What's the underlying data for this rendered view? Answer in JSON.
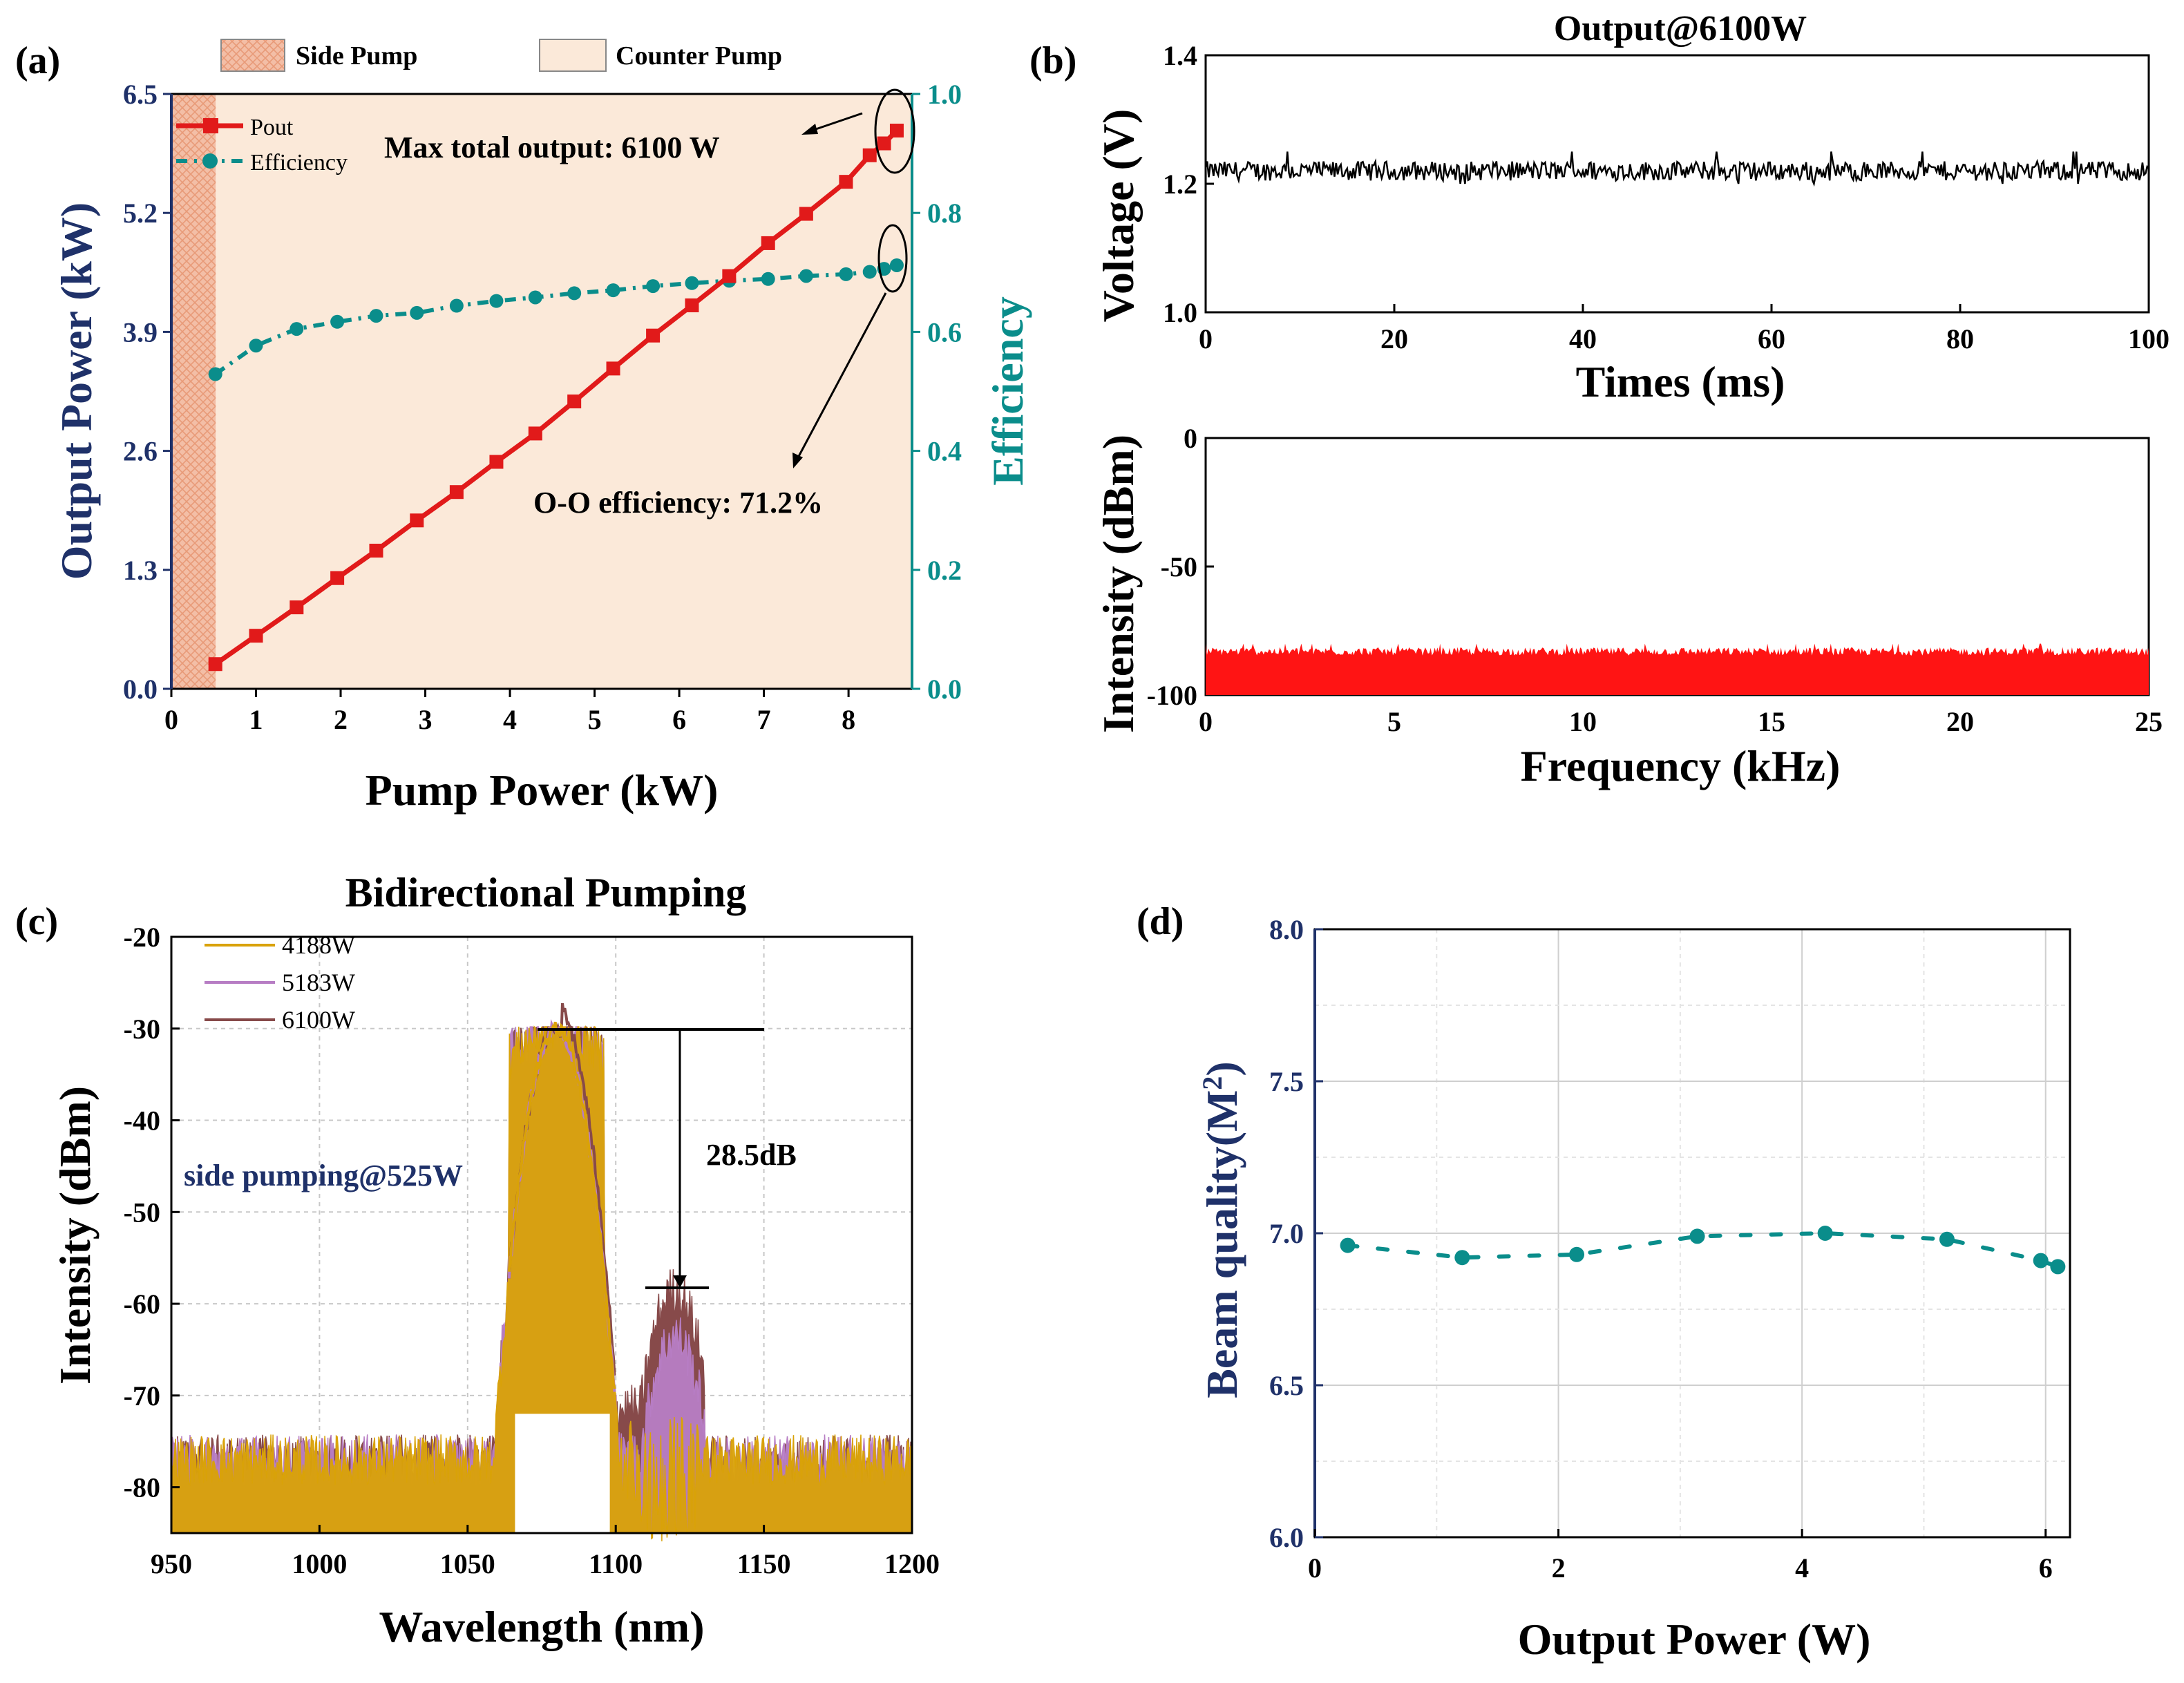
{
  "colors": {
    "navy": "#1f3169",
    "teal": "#0a8d8b",
    "red": "#e11a1a",
    "black": "#000000",
    "side_pump_fill": "#f0b9a0",
    "counter_pump_fill": "#fbe9d9",
    "yellow": "#d9a208",
    "purple": "#b77dc4",
    "brown": "#874a4a",
    "spectrum_red": "#ff1414"
  },
  "chart_data": [
    {
      "id": "a",
      "panel_label": "(a)",
      "type": "line",
      "legend_regions": [
        "Side Pump",
        "Counter Pump"
      ],
      "side_pump_range": [
        0,
        0.525
      ],
      "counter_pump_range": [
        0.525,
        8.75
      ],
      "xlabel": "Pump Power (kW)",
      "ylabel_left": "Output Power (kW)",
      "ylabel_right": "Efficiency",
      "xlim": [
        0,
        8.75
      ],
      "xticks": [
        "0",
        "1",
        "2",
        "3",
        "4",
        "5",
        "6",
        "7",
        "8"
      ],
      "ylim_left": [
        0,
        6.5
      ],
      "yticks_left": [
        "0.0",
        "1.3",
        "2.6",
        "3.9",
        "5.2",
        "6.5"
      ],
      "ylim_right": [
        0,
        1.0
      ],
      "yticks_right": [
        "0.0",
        "0.2",
        "0.4",
        "0.6",
        "0.8",
        "1.0"
      ],
      "series": [
        {
          "name": "Pout",
          "axis": "left",
          "x": [
            0.52,
            1.0,
            1.48,
            1.96,
            2.42,
            2.9,
            3.37,
            3.84,
            4.3,
            4.76,
            5.22,
            5.69,
            6.15,
            6.59,
            7.05,
            7.5,
            7.97,
            8.25,
            8.42,
            8.57
          ],
          "values": [
            0.27,
            0.58,
            0.89,
            1.21,
            1.51,
            1.84,
            2.15,
            2.48,
            2.79,
            3.14,
            3.5,
            3.86,
            4.19,
            4.51,
            4.87,
            5.19,
            5.54,
            5.83,
            5.96,
            6.1
          ]
        },
        {
          "name": "Efficiency",
          "axis": "right",
          "x": [
            0.52,
            1.0,
            1.48,
            1.96,
            2.42,
            2.9,
            3.37,
            3.84,
            4.3,
            4.76,
            5.22,
            5.69,
            6.15,
            6.59,
            7.05,
            7.5,
            7.97,
            8.25,
            8.42,
            8.57
          ],
          "values": [
            0.529,
            0.577,
            0.605,
            0.617,
            0.627,
            0.632,
            0.644,
            0.652,
            0.658,
            0.665,
            0.67,
            0.677,
            0.682,
            0.686,
            0.689,
            0.694,
            0.697,
            0.701,
            0.706,
            0.712
          ]
        }
      ],
      "annotations": [
        "Max total output: 6100 W",
        "O-O efficiency: 71.2%"
      ]
    },
    {
      "id": "b1",
      "panel_label": "(b)",
      "type": "line",
      "title": "Output@6100W",
      "xlabel": "Times (ms)",
      "ylabel": "Voltage (V)",
      "xlim": [
        0,
        100
      ],
      "xticks": [
        "0",
        "20",
        "40",
        "60",
        "80",
        "100"
      ],
      "ylim": [
        1.0,
        1.4
      ],
      "yticks": [
        "1.0",
        "1.2",
        "1.4"
      ],
      "series": [
        {
          "name": "Voltage trace",
          "mean": 1.22,
          "min": 1.2,
          "max": 1.25,
          "samples": 600
        }
      ]
    },
    {
      "id": "b2",
      "type": "area",
      "xlabel": "Frequency (kHz)",
      "ylabel": "Intensity (dBm)",
      "xlim": [
        0,
        25
      ],
      "xticks": [
        "0",
        "5",
        "10",
        "15",
        "20",
        "25"
      ],
      "ylim": [
        -100,
        0
      ],
      "yticks": [
        "-100",
        "-50",
        "0"
      ],
      "series": [
        {
          "name": "Noise spectrum",
          "floor": -100,
          "top_mean": -83,
          "top_min": -86,
          "top_max": -80,
          "samples": 700
        }
      ]
    },
    {
      "id": "c",
      "panel_label": "(c)",
      "type": "line",
      "title": "Bidirectional Pumping",
      "xlabel": "Wavelength (nm)",
      "ylabel": "Intensity (dBm)",
      "xlim": [
        950,
        1200
      ],
      "xticks": [
        "950",
        "1000",
        "1050",
        "1100",
        "1150",
        "1200"
      ],
      "ylim": [
        -85,
        -20
      ],
      "yticks": [
        "-20",
        "-30",
        "-40",
        "-50",
        "-60",
        "-70",
        "-80"
      ],
      "series": [
        {
          "name": "4188W",
          "peak_wavelength": 1080,
          "peak_dBm": -30,
          "stokes_peak_dBm": -72
        },
        {
          "name": "5183W",
          "peak_wavelength": 1080,
          "peak_dBm": -30,
          "stokes_peak_dBm": -63.5
        },
        {
          "name": "6100W",
          "peak_wavelength": 1080,
          "peak_dBm": -30,
          "stokes_peak_dBm": -58.5
        }
      ],
      "annotations": [
        "28.5dB",
        "side pumping@525W"
      ]
    },
    {
      "id": "d",
      "panel_label": "(d)",
      "type": "scatter",
      "xlabel": "Output Power (W)",
      "ylabel": "Beam quality(M",
      "ylabel_sup": "2",
      "ylabel_end": ")",
      "xlim": [
        0,
        6.2
      ],
      "xticks": [
        "0",
        "2",
        "4",
        "6"
      ],
      "ylim": [
        6.0,
        8.0
      ],
      "yticks": [
        "6.0",
        "6.5",
        "7.0",
        "7.5",
        "8.0"
      ],
      "series": [
        {
          "name": "Beam quality",
          "x": [
            0.27,
            1.21,
            2.15,
            3.14,
            4.19,
            5.19,
            5.96,
            6.1
          ],
          "values": [
            6.96,
            6.92,
            6.93,
            6.99,
            7.0,
            6.98,
            6.91,
            6.89
          ]
        }
      ]
    }
  ]
}
